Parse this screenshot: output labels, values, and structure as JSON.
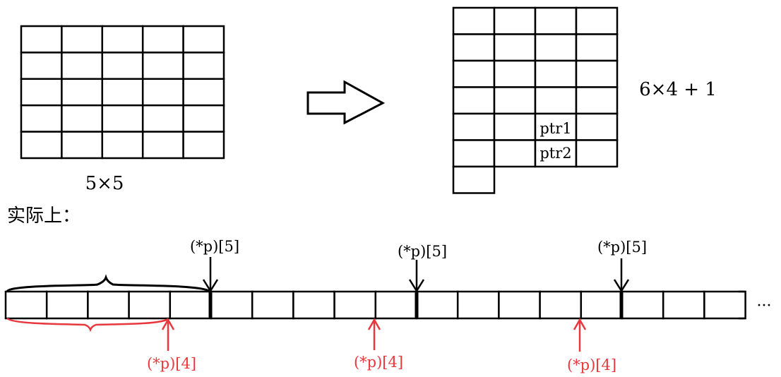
{
  "grid_left": {
    "rows": 5,
    "cols": 5,
    "label": "5×5"
  },
  "grid_right": {
    "rows": 6,
    "cols": 4,
    "extra_cells": 1,
    "label": "6×4 + 1",
    "cell_ptr1": "ptr1",
    "cell_ptr2": "ptr2"
  },
  "caption": "实际上：",
  "strip": {
    "cells": 18,
    "ellipsis": "···"
  },
  "black_pointer_label": "(*p)[5]",
  "red_pointer_label": "(*p)[4]",
  "colors": {
    "black": "#000000",
    "red": "#e8383d"
  }
}
